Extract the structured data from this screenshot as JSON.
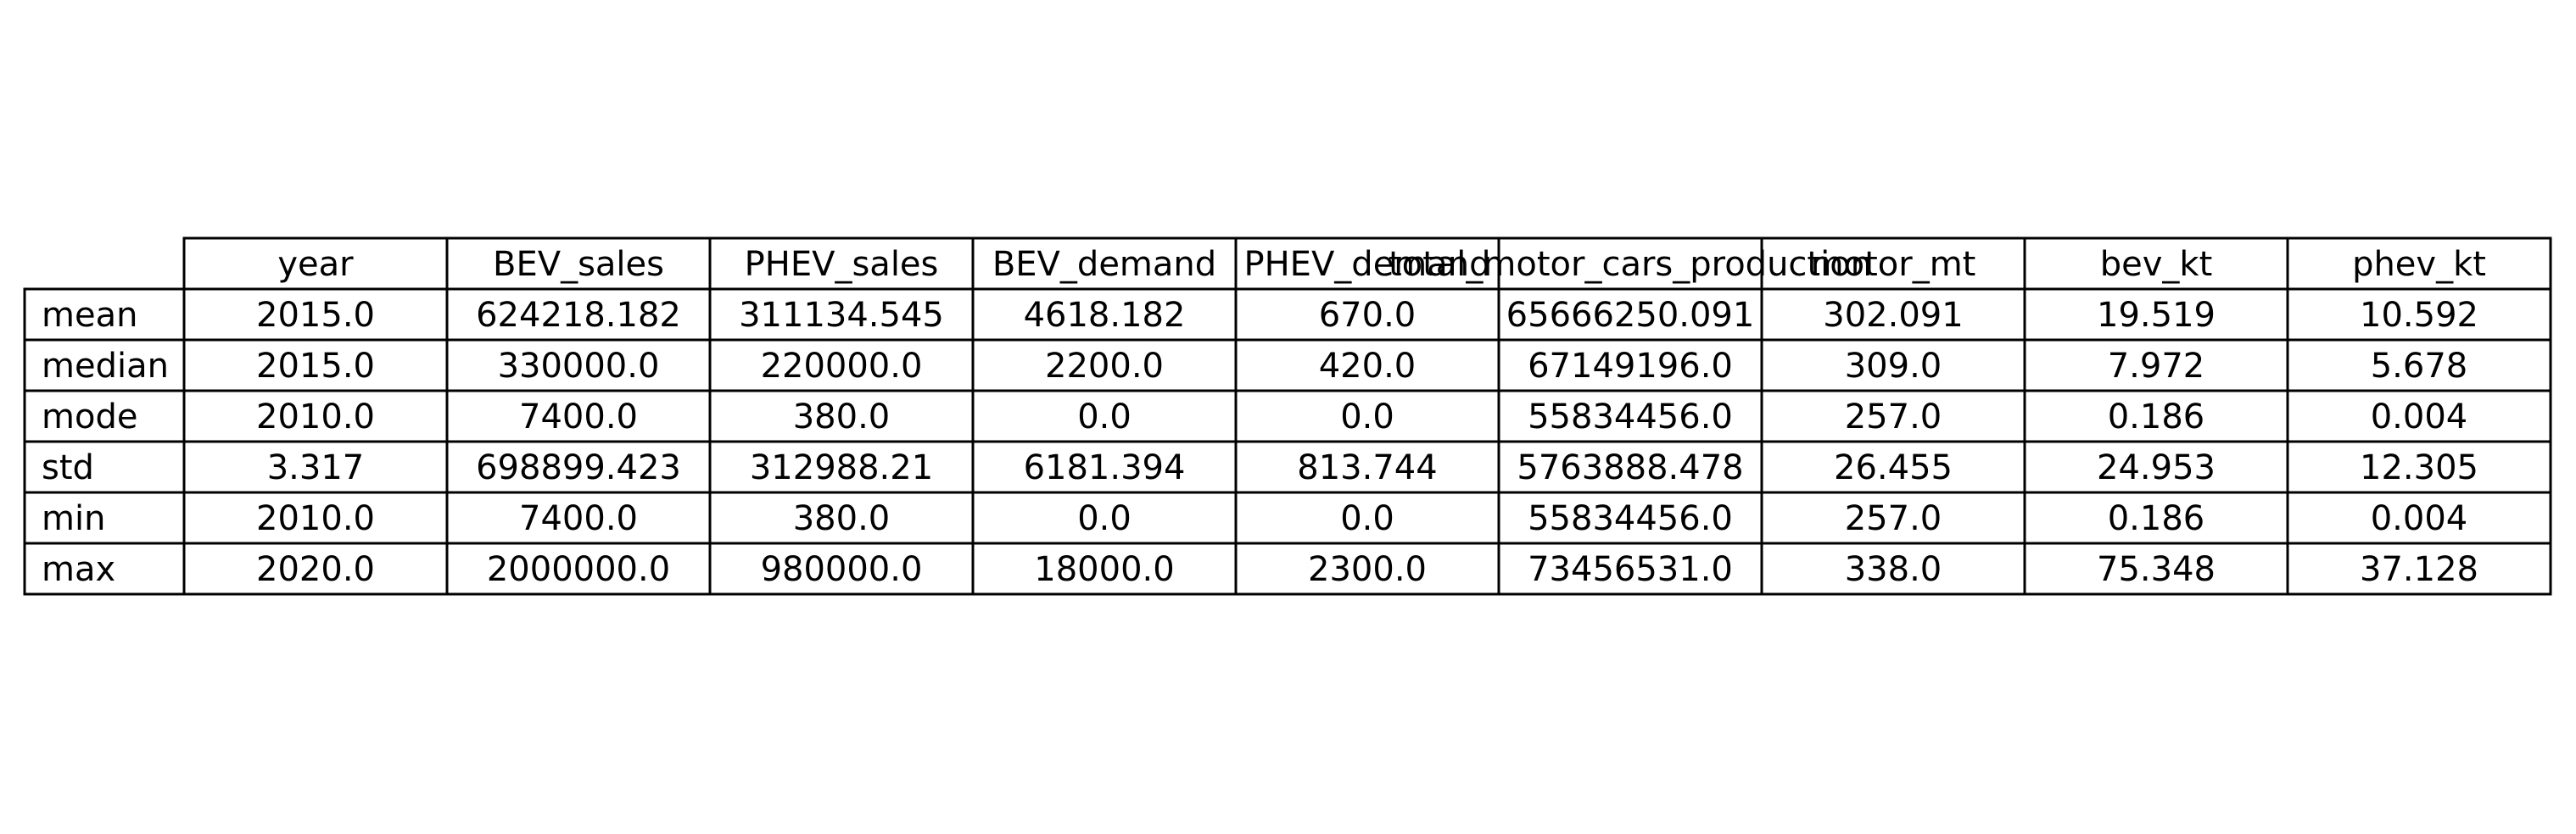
{
  "chart_data": {
    "type": "table",
    "columns": [
      "year",
      "BEV_sales",
      "PHEV_sales",
      "BEV_demand",
      "PHEV_demand",
      "total_motor_cars_production",
      "motor_mt",
      "bev_kt",
      "phev_kt"
    ],
    "rows": [
      {
        "label": "mean",
        "values": [
          "2015.0",
          "624218.182",
          "311134.545",
          "4618.182",
          "670.0",
          "65666250.091",
          "302.091",
          "19.519",
          "10.592"
        ]
      },
      {
        "label": "median",
        "values": [
          "2015.0",
          "330000.0",
          "220000.0",
          "2200.0",
          "420.0",
          "67149196.0",
          "309.0",
          "7.972",
          "5.678"
        ]
      },
      {
        "label": "mode",
        "values": [
          "2010.0",
          "7400.0",
          "380.0",
          "0.0",
          "0.0",
          "55834456.0",
          "257.0",
          "0.186",
          "0.004"
        ]
      },
      {
        "label": "std",
        "values": [
          "3.317",
          "698899.423",
          "312988.21",
          "6181.394",
          "813.744",
          "5763888.478",
          "26.455",
          "24.953",
          "12.305"
        ]
      },
      {
        "label": "min",
        "values": [
          "2010.0",
          "7400.0",
          "380.0",
          "0.0",
          "0.0",
          "55834456.0",
          "257.0",
          "0.186",
          "0.004"
        ]
      },
      {
        "label": "max",
        "values": [
          "2020.0",
          "2000000.0",
          "980000.0",
          "18000.0",
          "2300.0",
          "73456531.0",
          "338.0",
          "75.348",
          "37.128"
        ]
      }
    ]
  }
}
